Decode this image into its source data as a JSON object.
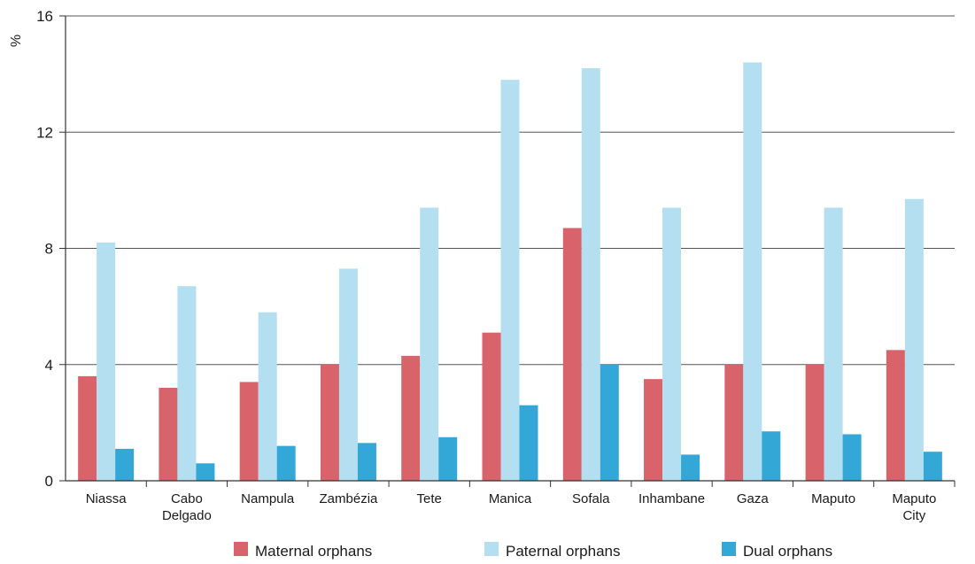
{
  "chart_data": {
    "type": "bar",
    "title": "",
    "xlabel": "",
    "ylabel": "%",
    "ylim": [
      0,
      16
    ],
    "yticks": [
      "0",
      "4",
      "8",
      "12",
      "16"
    ],
    "grid": true,
    "legend_position": "bottom",
    "categories": [
      [
        "Niassa"
      ],
      [
        "Cabo",
        "Delgado"
      ],
      [
        "Nampula"
      ],
      [
        "Zambézia"
      ],
      [
        "Tete"
      ],
      [
        "Manica"
      ],
      [
        "Sofala"
      ],
      [
        "Inhambane"
      ],
      [
        "Gaza"
      ],
      [
        "Maputo"
      ],
      [
        "Maputo",
        "City"
      ]
    ],
    "series": [
      {
        "name": "Maternal orphans",
        "color": "#d9636a",
        "values": [
          3.6,
          3.2,
          3.4,
          4.0,
          4.3,
          5.1,
          8.7,
          3.5,
          4.0,
          4.0,
          4.5
        ]
      },
      {
        "name": "Paternal orphans",
        "color": "#b4dff0",
        "values": [
          8.2,
          6.7,
          5.8,
          7.3,
          9.4,
          13.8,
          14.2,
          9.4,
          14.4,
          9.4,
          9.7
        ]
      },
      {
        "name": "Dual orphans",
        "color": "#33a8d6",
        "values": [
          1.1,
          0.6,
          1.2,
          1.3,
          1.5,
          2.6,
          4.0,
          0.9,
          1.7,
          1.6,
          1.0
        ]
      }
    ]
  }
}
